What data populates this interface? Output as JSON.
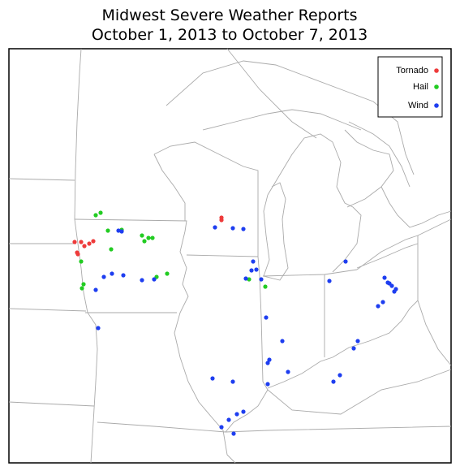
{
  "title": [
    "Midwest Severe Weather Reports",
    "October 1, 2013 to October 7, 2013"
  ],
  "legend": [
    {
      "label": "Tornado",
      "color": "#ee3b3b"
    },
    {
      "label": "Hail",
      "color": "#22cc22"
    },
    {
      "label": "Wind",
      "color": "#1e3ef0"
    }
  ]
}
